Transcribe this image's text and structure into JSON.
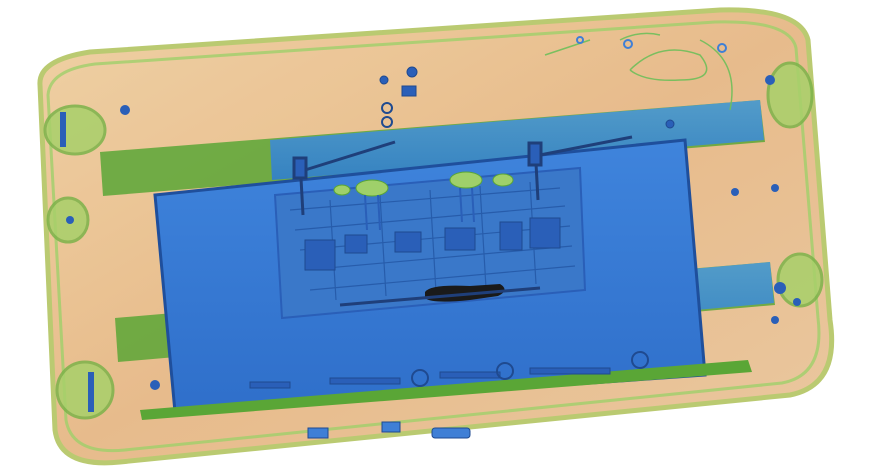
{
  "image": {
    "kind": "x-ray baggage scan",
    "palette": {
      "background": "#ffffff",
      "organic": "#e3a873",
      "organic_light": "#efcfa6",
      "mixed": "#7fbf4a",
      "mixed_dark": "#5aa636",
      "metal": "#3f7fd6",
      "metal_dark": "#2a5fb8",
      "dense": "#1a1a1a"
    }
  }
}
